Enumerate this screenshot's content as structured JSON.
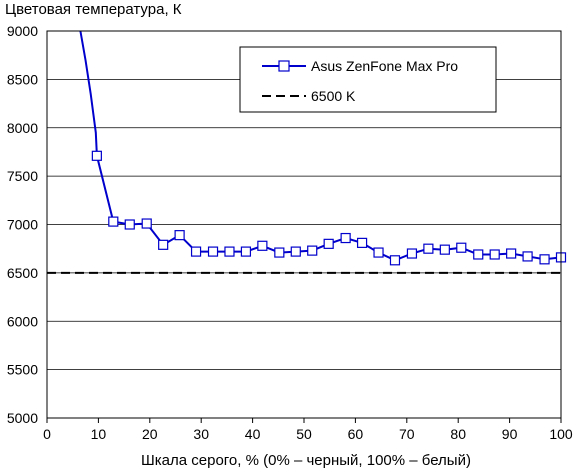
{
  "chart_data": {
    "type": "line",
    "title": "Цветовая температура, К",
    "xlabel": "Шкала серого, % (0% – черный, 100% – белый)",
    "ylabel": "",
    "xlim": [
      0,
      100
    ],
    "ylim": [
      5000,
      9000
    ],
    "x_ticks": [
      "0",
      "10",
      "20",
      "30",
      "40",
      "50",
      "60",
      "70",
      "80",
      "90",
      "100"
    ],
    "y_ticks": [
      "5000",
      "5500",
      "6000",
      "6500",
      "7000",
      "7500",
      "8000",
      "8500",
      "9000"
    ],
    "grid": "horizontal",
    "legend_position": "top-right",
    "colors": {
      "series": "#0000cc",
      "marker_fill": "#ffffff",
      "reference": "#000000",
      "grid": "#000000"
    },
    "series": [
      {
        "name": "Asus ZenFone Max Pro",
        "style": "solid-with-square-markers",
        "head": [
          [
            6.5,
            9000
          ],
          [
            7.5,
            8700
          ],
          [
            8.5,
            8350
          ],
          [
            9.5,
            7950
          ]
        ],
        "x": [
          9.7,
          12.9,
          16.1,
          19.4,
          22.6,
          25.8,
          29.0,
          32.3,
          35.5,
          38.7,
          41.9,
          45.2,
          48.4,
          51.6,
          54.8,
          58.1,
          61.3,
          64.5,
          67.7,
          71.0,
          74.2,
          77.4,
          80.6,
          83.9,
          87.1,
          90.3,
          93.5,
          96.8,
          100.0
        ],
        "y": [
          7710,
          7030,
          7000,
          7010,
          6790,
          6890,
          6720,
          6720,
          6720,
          6720,
          6780,
          6710,
          6720,
          6730,
          6800,
          6860,
          6810,
          6710,
          6630,
          6700,
          6750,
          6740,
          6760,
          6690,
          6690,
          6700,
          6670,
          6640,
          6660
        ]
      },
      {
        "name": "6500 K",
        "style": "dashed",
        "x": [
          0,
          100
        ],
        "y": [
          6500,
          6500
        ]
      }
    ]
  }
}
